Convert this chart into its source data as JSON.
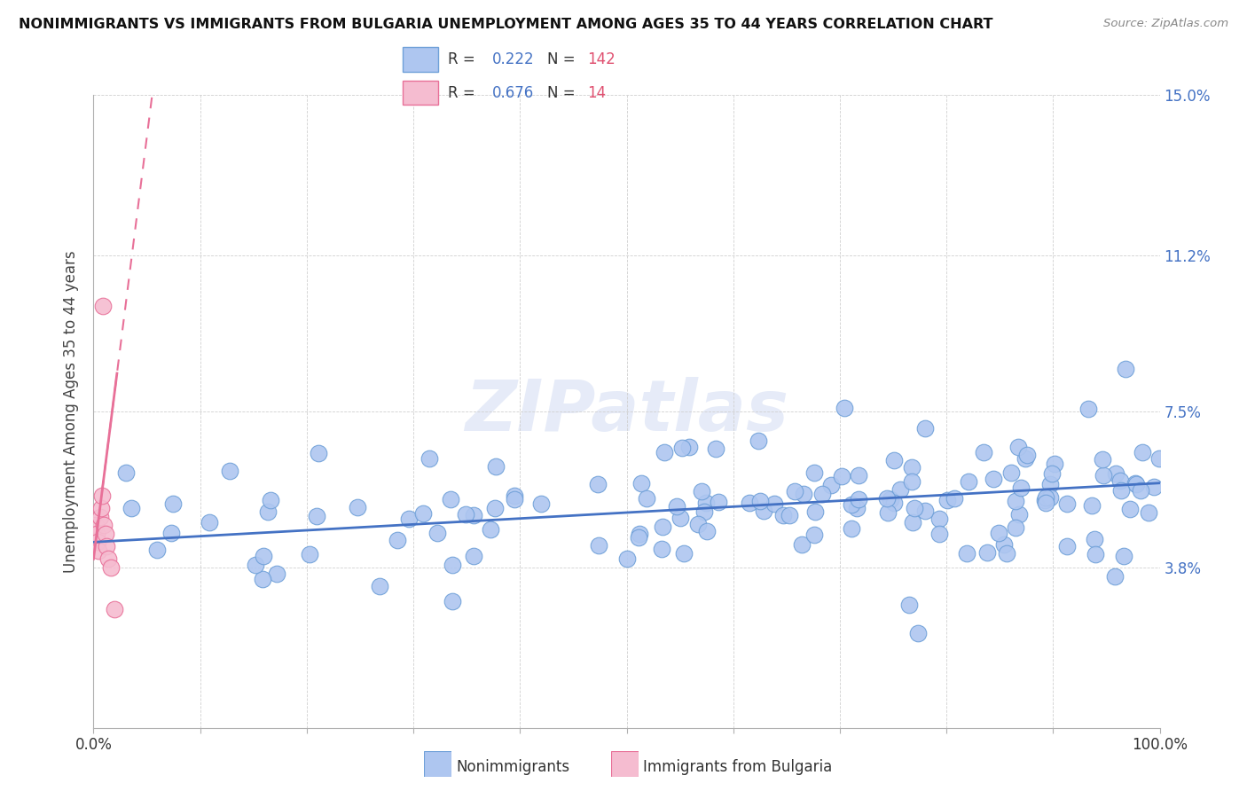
{
  "title": "NONIMMIGRANTS VS IMMIGRANTS FROM BULGARIA UNEMPLOYMENT AMONG AGES 35 TO 44 YEARS CORRELATION CHART",
  "source": "Source: ZipAtlas.com",
  "ylabel": "Unemployment Among Ages 35 to 44 years",
  "xlim": [
    0,
    1.0
  ],
  "ylim": [
    0,
    0.15
  ],
  "yticks": [
    0.038,
    0.075,
    0.112,
    0.15
  ],
  "ytick_labels": [
    "3.8%",
    "7.5%",
    "11.2%",
    "15.0%"
  ],
  "blue_color": "#aec6f0",
  "blue_edge_color": "#6fa0d8",
  "pink_color": "#f5bcd0",
  "pink_edge_color": "#e87098",
  "trend_blue": "#4472c4",
  "trend_pink": "#e87098",
  "legend_blue_R": "0.222",
  "legend_blue_N": "142",
  "legend_pink_R": "0.676",
  "legend_pink_N": "14",
  "watermark": "ZIPatlas",
  "blue_trend_y0": 0.044,
  "blue_trend_y1": 0.058,
  "pink_slope": 2.0,
  "pink_intercept": 0.04
}
